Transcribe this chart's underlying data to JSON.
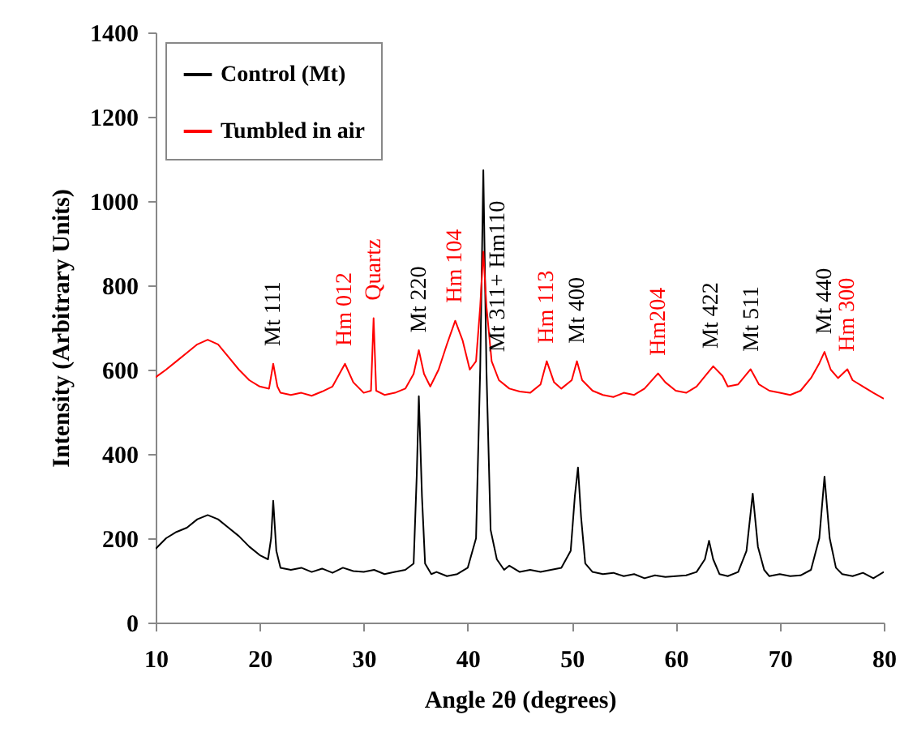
{
  "chart_data": {
    "type": "line",
    "xlabel": "Angle 2θ (degrees)",
    "ylabel": "Intensity (Arbitrary Units)",
    "xlim": [
      10,
      80
    ],
    "xticks": [
      10,
      20,
      30,
      40,
      50,
      60,
      70,
      80
    ],
    "ylim": [
      0,
      1400
    ],
    "yticks": [
      0,
      200,
      400,
      600,
      800,
      1000,
      1200,
      1400
    ],
    "legend": "top left",
    "series": [
      {
        "name": "Control (Mt)",
        "color": "#000000",
        "x": [
          10,
          11,
          12,
          13,
          14,
          15,
          16,
          17,
          18,
          19,
          20,
          20.8,
          21.1,
          21.3,
          21.6,
          22,
          23,
          24,
          25,
          26,
          27,
          28,
          29,
          30,
          31,
          32,
          33,
          34,
          34.8,
          35.1,
          35.3,
          35.6,
          35.9,
          36.5,
          37,
          38,
          39,
          40,
          40.8,
          41.2,
          41.5,
          41.8,
          42.2,
          42.8,
          43.5,
          44,
          45,
          46,
          47,
          48,
          49,
          49.9,
          50.3,
          50.6,
          50.9,
          51.3,
          52,
          53,
          54,
          55,
          56,
          57,
          58,
          59,
          60,
          61,
          62,
          62.8,
          63.2,
          63.6,
          64.2,
          65,
          66,
          66.8,
          67.4,
          67.9,
          68.5,
          69,
          70,
          71,
          72,
          73,
          73.8,
          74.3,
          74.8,
          75.4,
          76,
          77,
          78,
          79,
          80
        ],
        "values": [
          175,
          200,
          215,
          225,
          245,
          255,
          245,
          225,
          205,
          180,
          160,
          150,
          200,
          289,
          170,
          130,
          125,
          130,
          120,
          128,
          118,
          130,
          122,
          120,
          125,
          115,
          120,
          125,
          140,
          350,
          537,
          300,
          140,
          115,
          120,
          110,
          115,
          130,
          200,
          600,
          1073,
          600,
          220,
          150,
          125,
          135,
          120,
          125,
          120,
          125,
          130,
          170,
          300,
          368,
          250,
          140,
          120,
          115,
          118,
          110,
          115,
          105,
          112,
          108,
          110,
          112,
          120,
          150,
          194,
          150,
          115,
          110,
          120,
          170,
          306,
          180,
          125,
          110,
          115,
          110,
          112,
          125,
          200,
          346,
          200,
          130,
          115,
          110,
          118,
          105,
          120
        ]
      },
      {
        "name": "Tumbled in air",
        "color": "#ff0000",
        "x": [
          10,
          11,
          12,
          13,
          14,
          15,
          16,
          17,
          18,
          19,
          20,
          20.9,
          21.3,
          21.7,
          22,
          23,
          24,
          25,
          26,
          27,
          28.2,
          29,
          30,
          30.7,
          30.95,
          31.2,
          32,
          33,
          34,
          34.8,
          35.3,
          35.8,
          36.4,
          37.2,
          38,
          38.8,
          39.5,
          40.2,
          40.8,
          41.2,
          41.5,
          41.8,
          42.3,
          43,
          44,
          45,
          46,
          47,
          47.6,
          48.3,
          49,
          50,
          50.5,
          51,
          52,
          53,
          54,
          55,
          56,
          57,
          58.3,
          59,
          60,
          61,
          62,
          63,
          63.6,
          64.5,
          65,
          66,
          67.2,
          68,
          69,
          70,
          71,
          72,
          73,
          73.8,
          74.3,
          74.9,
          75.6,
          76.5,
          77,
          78,
          79,
          80
        ],
        "values": [
          582,
          600,
          620,
          640,
          660,
          671,
          660,
          630,
          600,
          575,
          560,
          555,
          614,
          560,
          545,
          540,
          545,
          538,
          548,
          560,
          614,
          570,
          545,
          550,
          722,
          550,
          540,
          545,
          555,
          590,
          646,
          590,
          560,
          600,
          660,
          716,
          670,
          600,
          620,
          750,
          880,
          750,
          620,
          575,
          555,
          548,
          545,
          565,
          620,
          570,
          555,
          575,
          620,
          575,
          550,
          540,
          535,
          545,
          540,
          555,
          591,
          570,
          550,
          545,
          560,
          590,
          608,
          585,
          560,
          565,
          601,
          565,
          550,
          545,
          540,
          550,
          580,
          615,
          642,
          600,
          580,
          601,
          575,
          560,
          545,
          531
        ]
      }
    ],
    "annotations": [
      {
        "text": "Mt 111",
        "x": 21.3,
        "y": 614
      },
      {
        "text": "Hm 012",
        "x": 28.2,
        "y": 614
      },
      {
        "text": "Quartz",
        "x": 30.95,
        "y": 722
      },
      {
        "text": "Mt 220",
        "x": 35.3,
        "y": 646
      },
      {
        "text": "Hm 104",
        "x": 38.8,
        "y": 716
      },
      {
        "text": "Mt 311+ Hm110",
        "x": 42.9,
        "y": 600
      },
      {
        "text": "Hm 113",
        "x": 47.6,
        "y": 620
      },
      {
        "text": "Mt 400",
        "x": 50.5,
        "y": 620
      },
      {
        "text": "Hm204",
        "x": 58.3,
        "y": 591
      },
      {
        "text": "Mt 422",
        "x": 63.4,
        "y": 600
      },
      {
        "text": "Mt 511",
        "x": 67.3,
        "y": 601
      },
      {
        "text": "Mt 440",
        "x": 74.3,
        "y": 642
      },
      {
        "text": "Hm 300",
        "x": 76.5,
        "y": 601
      }
    ]
  }
}
